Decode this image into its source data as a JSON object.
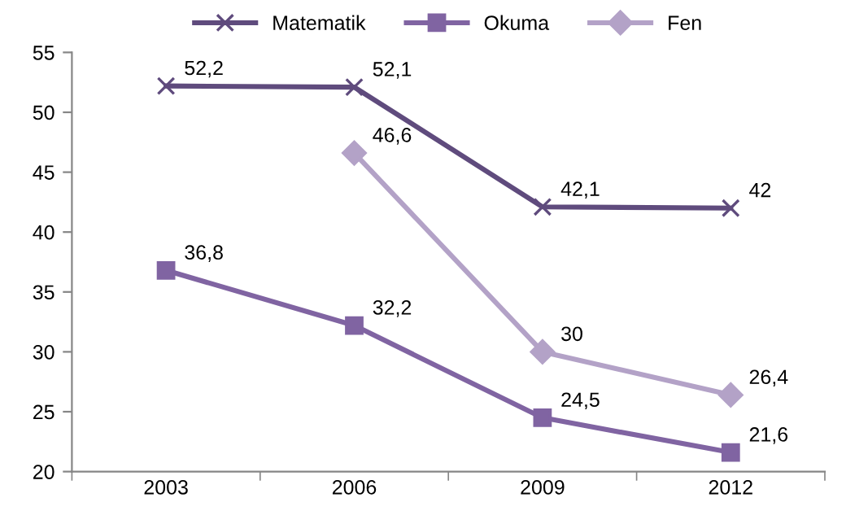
{
  "chart_data": {
    "type": "line",
    "categories": [
      "2003",
      "2006",
      "2009",
      "2012"
    ],
    "series": [
      {
        "name": "Matematik",
        "color": "#5f4b7d",
        "marker": "cross",
        "values": [
          52.2,
          52.1,
          42.1,
          42
        ],
        "value_labels": [
          "52,2",
          "52,1",
          "42,1",
          "42"
        ]
      },
      {
        "name": "Okuma",
        "color": "#8064a2",
        "marker": "square",
        "values": [
          36.8,
          32.2,
          24.5,
          21.6
        ],
        "value_labels": [
          "36,8",
          "32,2",
          "24,5",
          "21,6"
        ]
      },
      {
        "name": "Fen",
        "color": "#b3a2c7",
        "marker": "diamond",
        "values": [
          null,
          46.6,
          30,
          26.4
        ],
        "value_labels": [
          null,
          "46,6",
          "30",
          "26,4"
        ]
      }
    ],
    "ylim": [
      20,
      55
    ],
    "yticks": [
      20,
      25,
      30,
      35,
      40,
      45,
      50,
      55
    ],
    "grid": false,
    "legend": "top",
    "line_style": "solid"
  }
}
